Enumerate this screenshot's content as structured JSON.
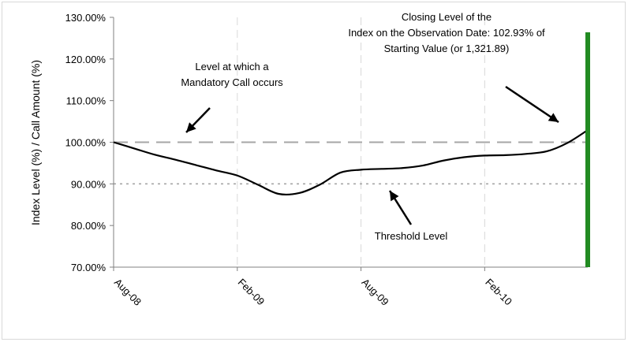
{
  "chart_data": {
    "type": "line",
    "title": "",
    "xlabel": "",
    "ylabel": "Index Level (%) / Call Amount (%)",
    "ylim": [
      70,
      130
    ],
    "yticks": [
      "130.00%",
      "120.00%",
      "110.00%",
      "100.00%",
      "90.00%",
      "80.00%",
      "70.00%"
    ],
    "ytick_values": [
      130,
      120,
      110,
      100,
      90,
      80,
      70
    ],
    "xticks": [
      "Aug-08",
      "Feb-09",
      "Aug-09",
      "Feb-10"
    ],
    "xtick_index": [
      0,
      6,
      12,
      18
    ],
    "grid": "vertical-dashed",
    "legend": "none",
    "series": [
      {
        "values": [
          100,
          98.5,
          97,
          95.8,
          94.5,
          93.2,
          92,
          89.8,
          87.6,
          87.8,
          89.8,
          92.7,
          93.4,
          93.6,
          93.8,
          94.4,
          95.6,
          96.4,
          96.8,
          96.9,
          97.2,
          97.8,
          99.8,
          102.93
        ],
        "color": "#000000"
      }
    ],
    "reference_lines": [
      {
        "value": 100,
        "style": "dashed",
        "color": "#a6a6a6"
      },
      {
        "value": 90,
        "style": "dotted",
        "color": "#a6a6a6"
      }
    ],
    "observation_bar": {
      "index": 23,
      "color": "#228b22"
    },
    "annotations": [
      {
        "key": "mandatory",
        "lines": [
          "Level at which a",
          "Mandatory Call occurs"
        ]
      },
      {
        "key": "threshold",
        "lines": [
          "Threshold Level"
        ]
      },
      {
        "key": "closing",
        "lines": [
          "Closing Level of the",
          "Index on the Observation Date: 102.93% of",
          "Starting Value (or 1,321.89)"
        ]
      }
    ]
  }
}
